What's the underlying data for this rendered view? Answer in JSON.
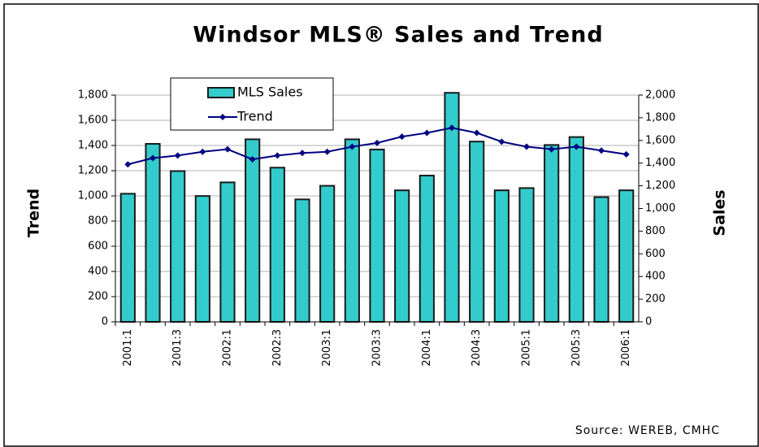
{
  "chart_data": {
    "type": "bar-line",
    "title": "Windsor MLS® Sales and Trend",
    "ylabel": "Trend",
    "y2label": "Sales",
    "source": "Source: WEREB, CMHC",
    "categories": [
      "2001:1",
      null,
      "2001:3",
      null,
      "2002:1",
      null,
      "2002:3",
      null,
      "2003:1",
      null,
      "2003:3",
      null,
      "2004:1",
      null,
      "2004:3",
      null,
      "2005:1",
      null,
      "2005:3",
      null,
      "2006:1"
    ],
    "series": [
      {
        "name": "MLS Sales",
        "type": "bar",
        "axis": "y2",
        "color": "#33cccc",
        "values": [
          1130,
          1570,
          1330,
          1110,
          1230,
          1610,
          1360,
          1080,
          1200,
          1610,
          1520,
          1160,
          1290,
          2020,
          1590,
          1160,
          1180,
          1560,
          1630,
          1100,
          1160
        ]
      },
      {
        "name": "Trend",
        "type": "line",
        "axis": "y",
        "color": "#000080",
        "values": [
          1250,
          1300,
          1320,
          1350,
          1370,
          1290,
          1320,
          1340,
          1350,
          1390,
          1420,
          1470,
          1500,
          1540,
          1500,
          1430,
          1390,
          1370,
          1390,
          1360,
          1330
        ]
      }
    ],
    "ylim": [
      0,
      1800
    ],
    "yticks": [
      0,
      200,
      400,
      600,
      800,
      {
        "value": 1000,
        "label": "1,000"
      },
      {
        "value": 1200,
        "label": "1,200"
      },
      {
        "value": 1400,
        "label": "1,400"
      },
      {
        "value": 1600,
        "label": "1,600"
      },
      {
        "value": 1800,
        "label": "1,800"
      }
    ],
    "y2lim": [
      0,
      2000
    ],
    "y2ticks": [
      0,
      200,
      400,
      600,
      800,
      {
        "value": 1000,
        "label": "1,000"
      },
      {
        "value": 1200,
        "label": "1,200"
      },
      {
        "value": 1400,
        "label": "1,400"
      },
      {
        "value": 1600,
        "label": "1,600"
      },
      {
        "value": 1800,
        "label": "1,800"
      },
      {
        "value": 2000,
        "label": "2,000"
      }
    ],
    "grid": true
  }
}
